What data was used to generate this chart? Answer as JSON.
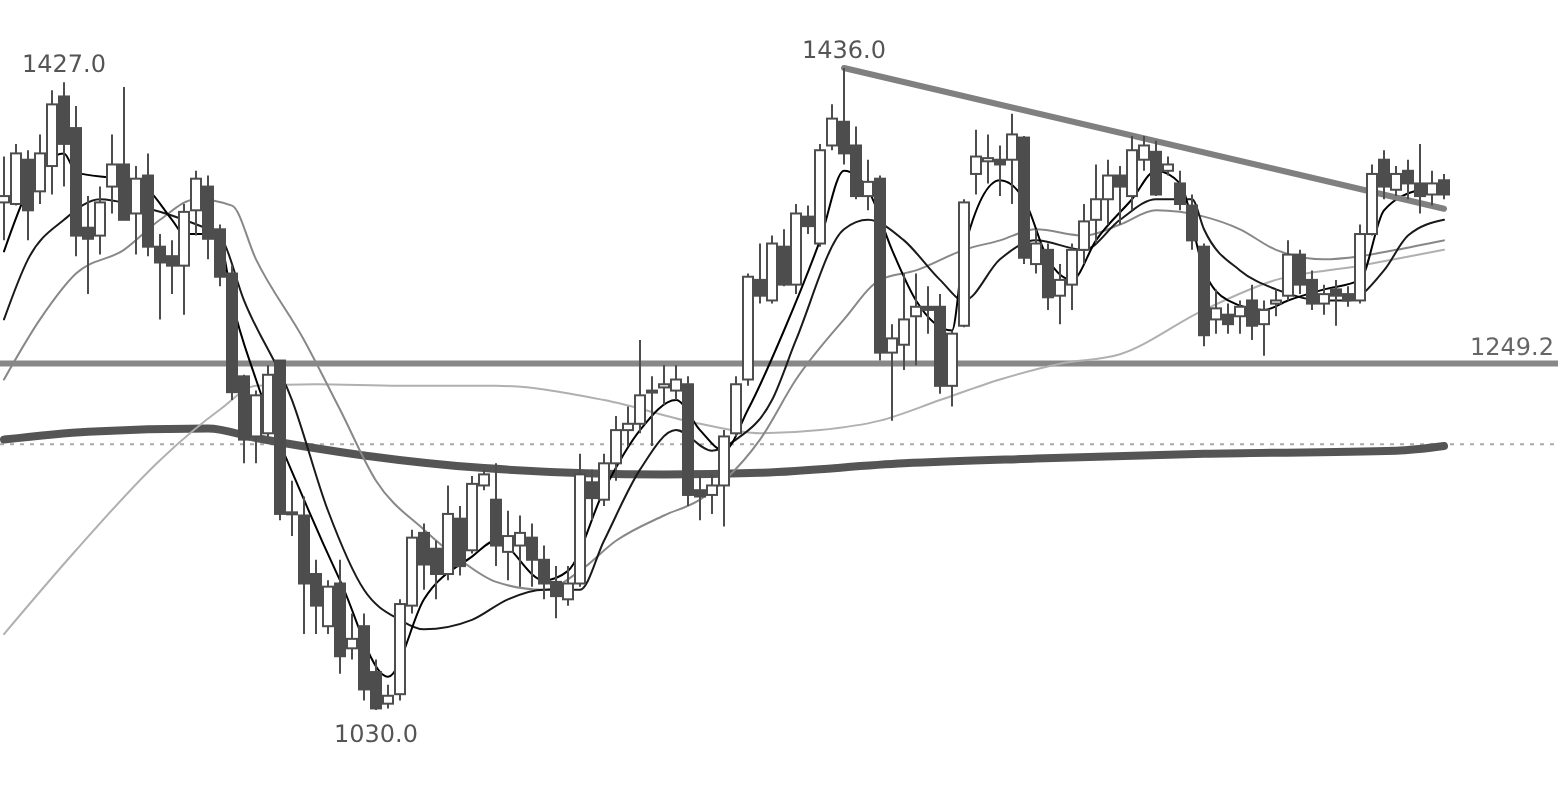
{
  "chart_data": {
    "type": "candlestick",
    "color": "#4d4d4d",
    "categories": [
      null,
      null,
      null,
      null,
      null,
      null,
      null,
      null,
      null,
      null,
      null,
      null,
      null,
      null,
      null,
      null,
      null,
      null,
      null,
      null,
      null,
      null,
      null,
      null,
      null,
      null,
      null,
      null,
      null,
      null,
      null,
      null,
      null,
      null,
      null,
      null,
      null,
      null,
      null,
      null,
      null,
      null,
      null,
      null,
      null,
      null,
      null,
      null,
      null,
      null,
      null,
      null,
      null,
      null,
      null,
      null,
      null,
      null,
      null,
      null,
      null,
      null,
      null,
      null,
      null,
      null,
      null,
      null,
      null,
      null,
      null,
      null,
      null,
      null,
      null,
      null,
      null,
      null,
      null,
      null,
      null,
      null,
      null,
      null,
      null,
      null,
      null,
      null,
      null,
      null,
      null,
      null,
      null,
      null,
      null,
      null,
      null,
      null,
      null,
      null,
      null,
      null,
      null,
      null,
      null,
      null,
      null,
      null,
      null,
      null,
      null,
      null,
      null,
      null,
      null,
      null,
      null,
      null,
      null,
      null,
      null
    ],
    "ohlc": [
      [
        1351,
        1380,
        1327,
        1355
      ],
      [
        1350,
        1388,
        1349,
        1382
      ],
      [
        1378,
        1384,
        1327,
        1346
      ],
      [
        1358,
        1394,
        1350,
        1382
      ],
      [
        1374,
        1422,
        1356,
        1413
      ],
      [
        1418,
        1427,
        1361,
        1388
      ],
      [
        1398,
        1412,
        1317,
        1330
      ],
      [
        1335,
        1355,
        1293,
        1328
      ],
      [
        1330,
        1361,
        1318,
        1351
      ],
      [
        1361,
        1394,
        1344,
        1375
      ],
      [
        1375,
        1424,
        1340,
        1340
      ],
      [
        1344,
        1374,
        1318,
        1366
      ],
      [
        1368,
        1382,
        1317,
        1323
      ],
      [
        1323,
        1331,
        1277,
        1313
      ],
      [
        1317,
        1327,
        1293,
        1311
      ],
      [
        1311,
        1350,
        1280,
        1345
      ],
      [
        1346,
        1371,
        1330,
        1366
      ],
      [
        1361,
        1368,
        1315,
        1328
      ],
      [
        1334,
        1337,
        1298,
        1304
      ],
      [
        1306,
        1311,
        1226,
        1231
      ],
      [
        1241,
        1242,
        1186,
        1201
      ],
      [
        1203,
        1232,
        1186,
        1229
      ],
      [
        1205,
        1248,
        1203,
        1242
      ],
      [
        1251,
        1251,
        1150,
        1154
      ],
      [
        1155,
        1175,
        1140,
        1154
      ],
      [
        1153,
        1165,
        1078,
        1110
      ],
      [
        1116,
        1125,
        1078,
        1096
      ],
      [
        1083,
        1112,
        1078,
        1108
      ],
      [
        1110,
        1125,
        1053,
        1064
      ],
      [
        1069,
        1091,
        1062,
        1075
      ],
      [
        1083,
        1091,
        1036,
        1043
      ],
      [
        1054,
        1062,
        1030,
        1031
      ],
      [
        1034,
        1046,
        1031,
        1039
      ],
      [
        1040,
        1100,
        1036,
        1097
      ],
      [
        1096,
        1144,
        1091,
        1139
      ],
      [
        1142,
        1148,
        1106,
        1122
      ],
      [
        1132,
        1137,
        1100,
        1116
      ],
      [
        1116,
        1172,
        1112,
        1154
      ],
      [
        1151,
        1159,
        1115,
        1121
      ],
      [
        1131,
        1178,
        1129,
        1173
      ],
      [
        1172,
        1182,
        1169,
        1179
      ],
      [
        1163,
        1186,
        1121,
        1134
      ],
      [
        1130,
        1156,
        1112,
        1140
      ],
      [
        1134,
        1153,
        1108,
        1142
      ],
      [
        1139,
        1148,
        1108,
        1125
      ],
      [
        1125,
        1134,
        1100,
        1110
      ],
      [
        1111,
        1121,
        1088,
        1102
      ],
      [
        1100,
        1121,
        1096,
        1110
      ],
      [
        1110,
        1192,
        1108,
        1179
      ],
      [
        1174,
        1182,
        1150,
        1164
      ],
      [
        1163,
        1192,
        1159,
        1186
      ],
      [
        1186,
        1216,
        1175,
        1207
      ],
      [
        1207,
        1222,
        1197,
        1211
      ],
      [
        1211,
        1264,
        1205,
        1229
      ],
      [
        1231,
        1241,
        1197,
        1232
      ],
      [
        1234,
        1248,
        1223,
        1236
      ],
      [
        1232,
        1248,
        1226,
        1239
      ],
      [
        1236,
        1241,
        1159,
        1166
      ],
      [
        1169,
        1178,
        1150,
        1165
      ],
      [
        1166,
        1179,
        1154,
        1172
      ],
      [
        1172,
        1207,
        1146,
        1203
      ],
      [
        1205,
        1241,
        1203,
        1236
      ],
      [
        1239,
        1306,
        1235,
        1304
      ],
      [
        1302,
        1325,
        1287,
        1292
      ],
      [
        1289,
        1330,
        1287,
        1325
      ],
      [
        1323,
        1334,
        1298,
        1299
      ],
      [
        1299,
        1350,
        1293,
        1344
      ],
      [
        1342,
        1349,
        1331,
        1336
      ],
      [
        1325,
        1388,
        1323,
        1384
      ],
      [
        1387,
        1413,
        1384,
        1404
      ],
      [
        1402,
        1436,
        1375,
        1382
      ],
      [
        1387,
        1399,
        1353,
        1355
      ],
      [
        1355,
        1378,
        1346,
        1364
      ],
      [
        1366,
        1368,
        1251,
        1256
      ],
      [
        1256,
        1274,
        1213,
        1265
      ],
      [
        1261,
        1306,
        1245,
        1277
      ],
      [
        1279,
        1306,
        1248,
        1285
      ],
      [
        1285,
        1298,
        1268,
        1283
      ],
      [
        1285,
        1293,
        1230,
        1235
      ],
      [
        1235,
        1270,
        1222,
        1268
      ],
      [
        1273,
        1353,
        1272,
        1351
      ],
      [
        1369,
        1397,
        1356,
        1380
      ],
      [
        1377,
        1394,
        1363,
        1379
      ],
      [
        1378,
        1387,
        1355,
        1375
      ],
      [
        1378,
        1407,
        1350,
        1394
      ],
      [
        1392,
        1393,
        1312,
        1316
      ],
      [
        1312,
        1334,
        1306,
        1325
      ],
      [
        1321,
        1325,
        1283,
        1291
      ],
      [
        1292,
        1312,
        1274,
        1302
      ],
      [
        1299,
        1325,
        1283,
        1321
      ],
      [
        1321,
        1350,
        1312,
        1339
      ],
      [
        1340,
        1375,
        1325,
        1353
      ],
      [
        1353,
        1378,
        1337,
        1368
      ],
      [
        1368,
        1374,
        1337,
        1361
      ],
      [
        1355,
        1393,
        1346,
        1384
      ],
      [
        1378,
        1393,
        1371,
        1387
      ],
      [
        1383,
        1390,
        1355,
        1356
      ],
      [
        1371,
        1380,
        1368,
        1375
      ],
      [
        1363,
        1371,
        1346,
        1350
      ],
      [
        1349,
        1356,
        1321,
        1327
      ],
      [
        1323,
        1325,
        1260,
        1267
      ],
      [
        1277,
        1296,
        1268,
        1284
      ],
      [
        1280,
        1287,
        1268,
        1274
      ],
      [
        1279,
        1289,
        1268,
        1285
      ],
      [
        1289,
        1299,
        1264,
        1273
      ],
      [
        1274,
        1289,
        1254,
        1283
      ],
      [
        1287,
        1296,
        1279,
        1289
      ],
      [
        1292,
        1327,
        1289,
        1318
      ],
      [
        1318,
        1321,
        1293,
        1299
      ],
      [
        1302,
        1308,
        1283,
        1287
      ],
      [
        1287,
        1299,
        1280,
        1293
      ],
      [
        1296,
        1302,
        1273,
        1292
      ],
      [
        1293,
        1298,
        1285,
        1289
      ],
      [
        1289,
        1337,
        1287,
        1331
      ],
      [
        1331,
        1375,
        1330,
        1369
      ],
      [
        1378,
        1384,
        1353,
        1361
      ],
      [
        1359,
        1374,
        1355,
        1369
      ],
      [
        1371,
        1378,
        1353,
        1363
      ],
      [
        1363,
        1388,
        1344,
        1355
      ],
      [
        1356,
        1371,
        1349,
        1363
      ],
      [
        1365,
        1369,
        1353,
        1356
      ]
    ],
    "series": [
      {
        "type": "line",
        "color": "#555555",
        "values": [
          1201,
          null,
          null,
          null,
          null,
          null,
          null,
          1206,
          null,
          null,
          null,
          null,
          null,
          null,
          null,
          null,
          null,
          1208,
          null,
          null,
          null,
          1202,
          null,
          null,
          null,
          null,
          null,
          null,
          null,
          null,
          1191,
          null,
          null,
          null,
          null,
          null,
          null,
          null,
          null,
          null,
          1183,
          null,
          null,
          null,
          null,
          null,
          null,
          null,
          null,
          null,
          null,
          null,
          null,
          null,
          null,
          1179,
          null,
          null,
          null,
          null,
          null,
          null,
          null,
          1180,
          null,
          null,
          null,
          null,
          null,
          null,
          null,
          null,
          null,
          null,
          null,
          1186,
          null,
          null,
          null,
          null,
          null,
          null,
          null,
          null,
          null,
          null,
          1189,
          null,
          null,
          null,
          null,
          null,
          null,
          null,
          null,
          null,
          null,
          null,
          null,
          null,
          1192,
          null,
          null,
          null,
          null,
          null,
          null,
          null,
          null,
          null,
          null,
          null,
          null,
          null,
          null,
          null,
          1194,
          null,
          null,
          null,
          1197
        ]
      },
      {
        "type": "line",
        "color": "#b0b0b0",
        "values": [
          1078,
          null,
          null,
          null,
          null,
          null,
          1131,
          null,
          null,
          null,
          null,
          null,
          null,
          1188,
          null,
          null,
          null,
          null,
          1220,
          null,
          null,
          1235,
          null,
          null,
          null,
          null,
          1236,
          null,
          null,
          null,
          null,
          null,
          null,
          1235,
          null,
          null,
          null,
          null,
          null,
          null,
          null,
          1235,
          null,
          null,
          null,
          null,
          null,
          null,
          null,
          null,
          1226,
          null,
          null,
          null,
          null,
          null,
          null,
          null,
          1211,
          null,
          null,
          null,
          null,
          1205,
          null,
          null,
          null,
          null,
          1207,
          null,
          null,
          null,
          null,
          1213,
          null,
          null,
          null,
          null,
          1226,
          null,
          null,
          null,
          null,
          1239,
          null,
          null,
          null,
          null,
          1249,
          null,
          null,
          null,
          null,
          1255,
          null,
          null,
          null,
          null,
          null,
          null,
          1283,
          null,
          null,
          null,
          null,
          null,
          1302,
          null,
          null,
          null,
          null,
          null,
          null,
          1311,
          null,
          null,
          null,
          null,
          null,
          null,
          1321
        ]
      },
      {
        "type": "line",
        "color": "#888888",
        "values": [
          1239,
          null,
          null,
          1277,
          null,
          null,
          1306,
          null,
          null,
          null,
          1321,
          null,
          null,
          1340,
          null,
          null,
          1353,
          null,
          null,
          1349,
          null,
          1315,
          null,
          null,
          null,
          1264,
          null,
          null,
          1220,
          null,
          null,
          1175,
          null,
          null,
          null,
          1144,
          null,
          null,
          1125,
          null,
          null,
          1111,
          null,
          null,
          null,
          1106,
          null,
          null,
          1118,
          null,
          null,
          1137,
          null,
          null,
          null,
          1153,
          null,
          null,
          1163,
          null,
          1175,
          null,
          null,
          1201,
          null,
          null,
          1239,
          null,
          null,
          null,
          1277,
          null,
          null,
          1302,
          null,
          null,
          1308,
          null,
          null,
          null,
          1321,
          null,
          null,
          1327,
          null,
          null,
          1334,
          null,
          null,
          null,
          1330,
          null,
          null,
          1337,
          null,
          null,
          1346,
          null,
          null,
          null,
          1342,
          null,
          null,
          1334,
          null,
          null,
          1321,
          null,
          null,
          null,
          1315,
          null,
          null,
          1317,
          null,
          null,
          1321,
          null,
          null,
          null,
          1327
        ]
      },
      {
        "type": "line",
        "color": "#1a1a1a",
        "values": [
          1277,
          null,
          1315,
          null,
          null,
          1340,
          null,
          null,
          1353,
          null,
          null,
          1349,
          null,
          null,
          null,
          1340,
          null,
          1334,
          1330,
          null,
          1289,
          null,
          null,
          null,
          1226,
          null,
          null,
          1156,
          null,
          null,
          1106,
          null,
          null,
          1087,
          null,
          1081,
          null,
          null,
          null,
          1087,
          null,
          null,
          1100,
          null,
          null,
          1106,
          null,
          null,
          1106,
          null,
          1137,
          null,
          null,
          1182,
          null,
          null,
          1207,
          null,
          null,
          1194,
          null,
          1201,
          null,
          null,
          1226,
          null,
          1264,
          null,
          null,
          null,
          1334,
          null,
          1340,
          null,
          null,
          1327,
          null,
          null,
          1302,
          null,
          1289,
          null,
          null,
          1315,
          null,
          null,
          1327,
          null,
          null,
          null,
          1321,
          null,
          null,
          1340,
          null,
          null,
          1353,
          null,
          null,
          1353,
          1334,
          null,
          null,
          1308,
          null,
          null,
          1296,
          null,
          null,
          null,
          1289,
          null,
          1289,
          null,
          null,
          1308,
          null,
          1330,
          null,
          null,
          1340
        ]
      },
      {
        "type": "line",
        "color": "#000000",
        "values": [
          1320,
          null,
          1359,
          null,
          null,
          1382,
          1370,
          null,
          null,
          null,
          1365,
          null,
          1359,
          null,
          1340,
          1331,
          null,
          1331,
          1327,
          1289,
          null,
          1239,
          null,
          null,
          null,
          1163,
          null,
          null,
          1112,
          null,
          null,
          null,
          1051,
          null,
          null,
          1100,
          null,
          null,
          null,
          1127,
          null,
          1137,
          null,
          null,
          null,
          1112,
          null,
          1118,
          null,
          null,
          1169,
          null,
          null,
          1207,
          null,
          null,
          1226,
          null,
          1207,
          null,
          1194,
          null,
          1220,
          null,
          null,
          1270,
          null,
          null,
          1327,
          null,
          1371,
          null,
          1359,
          null,
          1321,
          null,
          1289,
          null,
          null,
          1270,
          1321,
          null,
          null,
          1365,
          null,
          1353,
          null,
          1315,
          null,
          1302,
          null,
          1327,
          null,
          null,
          1353,
          null,
          1371,
          null,
          1363,
          null,
          1308,
          null,
          1289,
          null,
          null,
          1283,
          null,
          1289,
          null,
          null,
          1296,
          null,
          null,
          1302,
          null,
          1346,
          null,
          null,
          1359,
          null,
          1361
        ]
      },
      {
        "type": "line",
        "color": "#808080",
        "values": [
          null,
          null,
          null,
          null,
          null,
          null,
          null,
          null,
          null,
          null,
          null,
          null,
          null,
          null,
          null,
          null,
          null,
          null,
          null,
          null,
          null,
          null,
          null,
          null,
          null,
          null,
          null,
          null,
          null,
          null,
          null,
          null,
          null,
          null,
          null,
          null,
          null,
          null,
          null,
          null,
          null,
          null,
          null,
          null,
          null,
          null,
          null,
          null,
          null,
          null,
          null,
          null,
          null,
          null,
          null,
          null,
          null,
          null,
          null,
          null,
          null,
          null,
          null,
          null,
          null,
          null,
          null,
          null,
          null,
          null,
          1436,
          null,
          null,
          null,
          null,
          null,
          null,
          null,
          null,
          null,
          null,
          null,
          null,
          null,
          null,
          null,
          null,
          null,
          null,
          null,
          null,
          null,
          null,
          null,
          null,
          null,
          null,
          null,
          null,
          null,
          null,
          null,
          null,
          null,
          null,
          null,
          null,
          null,
          null,
          null,
          null,
          null,
          null,
          null,
          null,
          null,
          null,
          null,
          null,
          null,
          1347
        ]
      }
    ],
    "ref_lines": [
      {
        "axis": "y",
        "value": 1249.2,
        "label": "1249.2",
        "color": "#888888",
        "line_style": "solid"
      },
      {
        "axis": "y",
        "value": 1198,
        "color": "#aaaaaa",
        "line_style": "dotted"
      }
    ],
    "annotations": [
      {
        "text": "1427.0",
        "y": 1427
      },
      {
        "text": "1436.0",
        "y": 1436
      },
      {
        "text": "1030.0",
        "y": 1030
      }
    ]
  }
}
